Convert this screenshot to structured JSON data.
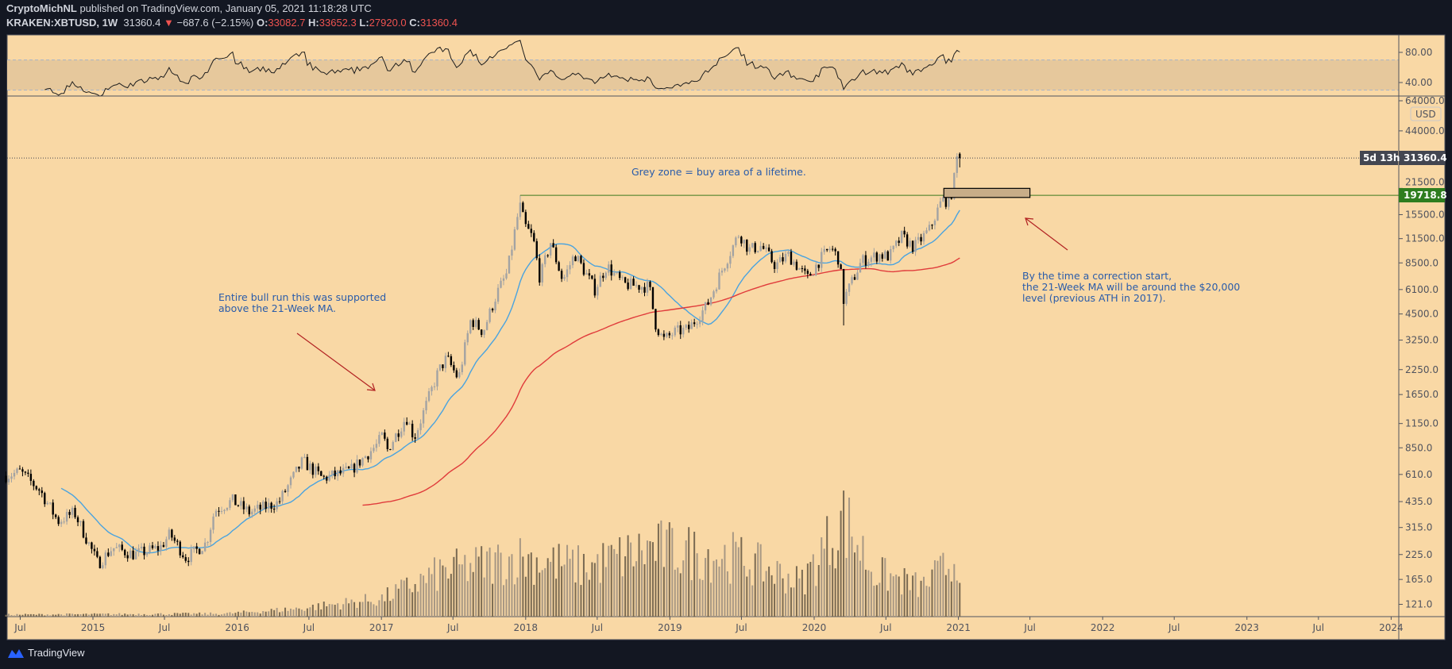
{
  "header": {
    "author": "CryptoMichNL",
    "published": " published on TradingView.com, January 05, 2021 11:18:28 UTC",
    "symbol": "KRAKEN:XBTUSD, 1W",
    "last": "31360.4",
    "change_arrow": "▼",
    "change": "−687.6 (−2.15%)",
    "o_label": "O:",
    "o": "33082.7",
    "h_label": "H:",
    "h": "33652.3",
    "l_label": "L:",
    "l": "27920.0",
    "c_label": "C:",
    "c": "31360.4"
  },
  "brand": "TradingView",
  "colors": {
    "background": "#f9d8a5",
    "frame": "#131722",
    "up_candle": "#a3a3a3",
    "down_candle": "#000000",
    "ma21": "#4aa3df",
    "ma_long": "#e03b3b",
    "volume_up": "#a89884",
    "volume_down": "#7a6a52",
    "annotation_text": "#2a5caa",
    "arrow": "#b22222",
    "ath_line": "#3c7a1e",
    "zone_fill": "#c8ad88",
    "last_price_tag": "#434651",
    "ath_tag": "#2e7d1f"
  },
  "annotations": {
    "grey_zone": "Grey zone = buy area of a lifetime.",
    "bull_run": [
      "Entire bull run this was supported",
      "above the 21-Week MA."
    ],
    "correction": [
      "By the time a correction start,",
      "the 21-Week MA will be around the $20,000",
      "level (previous ATH in 2017)."
    ]
  },
  "tags": {
    "last_price": "31360.4",
    "countdown": "5d 13h",
    "ath": "19718.8",
    "currency": "USD"
  },
  "chart_data": {
    "type": "candlestick",
    "interval": "1W",
    "scale": "log",
    "grid": false,
    "ylim": [
      110,
      70000
    ],
    "price_ticks": [
      64000,
      44000,
      21500,
      15500,
      11500,
      8500,
      6100,
      4500,
      3250,
      2250,
      1650,
      1150,
      850,
      610,
      435,
      315,
      225,
      165,
      121
    ],
    "price_tick_labels": [
      "64000.0",
      "44000.0",
      "21500.0",
      "15500.0",
      "11500.0",
      "8500.0",
      "6100.0",
      "4500.0",
      "3250.0",
      "2250.0",
      "1650.0",
      "1150.0",
      "850.0",
      "610.0",
      "435.0",
      "315.0",
      "225.0",
      "165.0",
      "121.0"
    ],
    "rsi": {
      "period": 14,
      "ticks": [
        80,
        40
      ],
      "tick_labels": [
        "80.00",
        "40.00"
      ],
      "band": [
        30,
        70
      ]
    },
    "time_ticks": [
      {
        "label": "Jul",
        "date": "2014-07-01"
      },
      {
        "label": "2015",
        "date": "2015-01-01"
      },
      {
        "label": "Jul",
        "date": "2015-07-01"
      },
      {
        "label": "2016",
        "date": "2016-01-01"
      },
      {
        "label": "Jul",
        "date": "2016-07-01"
      },
      {
        "label": "2017",
        "date": "2017-01-01"
      },
      {
        "label": "Jul",
        "date": "2017-07-01"
      },
      {
        "label": "2018",
        "date": "2018-01-01"
      },
      {
        "label": "Jul",
        "date": "2018-07-01"
      },
      {
        "label": "2019",
        "date": "2019-01-01"
      },
      {
        "label": "Jul",
        "date": "2019-07-01"
      },
      {
        "label": "2020",
        "date": "2020-01-01"
      },
      {
        "label": "Jul",
        "date": "2020-07-01"
      },
      {
        "label": "2021",
        "date": "2021-01-01"
      },
      {
        "label": "Jul",
        "date": "2021-07-01"
      },
      {
        "label": "2022",
        "date": "2022-01-01"
      },
      {
        "label": "Jul",
        "date": "2022-07-01"
      },
      {
        "label": "2023",
        "date": "2023-01-01"
      },
      {
        "label": "Jul",
        "date": "2023-07-01"
      },
      {
        "label": "2024",
        "date": "2024-01-01"
      }
    ],
    "close_anchors": [
      [
        "2014-05-26",
        600
      ],
      [
        "2014-07-01",
        630
      ],
      [
        "2014-08-20",
        500
      ],
      [
        "2014-10-05",
        340
      ],
      [
        "2014-11-15",
        380
      ],
      [
        "2015-01-14",
        200
      ],
      [
        "2015-02-20",
        245
      ],
      [
        "2015-04-15",
        225
      ],
      [
        "2015-06-20",
        245
      ],
      [
        "2015-07-15",
        290
      ],
      [
        "2015-08-25",
        215
      ],
      [
        "2015-10-15",
        260
      ],
      [
        "2015-11-05",
        390
      ],
      [
        "2015-12-20",
        440
      ],
      [
        "2016-02-01",
        380
      ],
      [
        "2016-04-15",
        430
      ],
      [
        "2016-06-15",
        720
      ],
      [
        "2016-08-05",
        580
      ],
      [
        "2016-10-15",
        640
      ],
      [
        "2016-12-20",
        880
      ],
      [
        "2017-01-05",
        1000
      ],
      [
        "2017-01-15",
        820
      ],
      [
        "2017-03-05",
        1250
      ],
      [
        "2017-03-25",
        960
      ],
      [
        "2017-05-25",
        2200
      ],
      [
        "2017-06-15",
        2600
      ],
      [
        "2017-07-15",
        2000
      ],
      [
        "2017-08-15",
        4200
      ],
      [
        "2017-09-15",
        3600
      ],
      [
        "2017-10-20",
        5800
      ],
      [
        "2017-11-15",
        7500
      ],
      [
        "2017-12-17",
        17500
      ],
      [
        "2017-12-30",
        13500
      ],
      [
        "2018-01-20",
        11500
      ],
      [
        "2018-02-06",
        7000
      ],
      [
        "2018-03-05",
        11000
      ],
      [
        "2018-04-05",
        6800
      ],
      [
        "2018-05-05",
        9500
      ],
      [
        "2018-06-25",
        6100
      ],
      [
        "2018-07-25",
        8200
      ],
      [
        "2018-09-05",
        6500
      ],
      [
        "2018-11-10",
        6300
      ],
      [
        "2018-11-25",
        4000
      ],
      [
        "2018-12-15",
        3250
      ],
      [
        "2019-01-15",
        3600
      ],
      [
        "2019-02-15",
        3700
      ],
      [
        "2019-04-05",
        5000
      ],
      [
        "2019-05-15",
        8000
      ],
      [
        "2019-06-25",
        12300
      ],
      [
        "2019-07-20",
        10000
      ],
      [
        "2019-08-20",
        10500
      ],
      [
        "2019-09-25",
        8200
      ],
      [
        "2019-10-27",
        9400
      ],
      [
        "2019-12-15",
        7000
      ],
      [
        "2020-01-15",
        8800
      ],
      [
        "2020-02-12",
        10300
      ],
      [
        "2020-03-05",
        8800
      ],
      [
        "2020-03-15",
        5300
      ],
      [
        "2020-04-30",
        8700
      ],
      [
        "2020-06-15",
        9400
      ],
      [
        "2020-07-10",
        9200
      ],
      [
        "2020-08-10",
        11800
      ],
      [
        "2020-09-10",
        10300
      ],
      [
        "2020-10-20",
        12900
      ],
      [
        "2020-11-20",
        18600
      ],
      [
        "2020-12-10",
        18300
      ],
      [
        "2020-12-25",
        26500
      ],
      [
        "2020-12-28",
        32048
      ],
      [
        "2021-01-04",
        31360.4
      ]
    ],
    "last_candle": {
      "open": 33082.7,
      "high": 33652.3,
      "low": 27920.0,
      "close": 31360.4
    },
    "all_time_high_level": 19718.8,
    "buy_zone": {
      "from": "2020-11-25",
      "to": "2021-07-01",
      "low": 19200,
      "high": 21500
    },
    "moving_averages": [
      {
        "period": 21
      },
      {
        "period": 130
      }
    ],
    "volume_relative_anchors": [
      [
        "2014-05-26",
        0.02
      ],
      [
        "2015-12-01",
        0.03
      ],
      [
        "2016-06-01",
        0.08
      ],
      [
        "2017-01-01",
        0.18
      ],
      [
        "2017-06-01",
        0.45
      ],
      [
        "2017-12-15",
        0.6
      ],
      [
        "2018-06-01",
        0.5
      ],
      [
        "2018-11-20",
        0.7
      ],
      [
        "2019-06-20",
        0.6
      ],
      [
        "2019-12-01",
        0.35
      ],
      [
        "2020-03-15",
        1.0
      ],
      [
        "2020-06-01",
        0.45
      ],
      [
        "2020-10-01",
        0.3
      ],
      [
        "2021-01-04",
        0.62
      ]
    ]
  }
}
